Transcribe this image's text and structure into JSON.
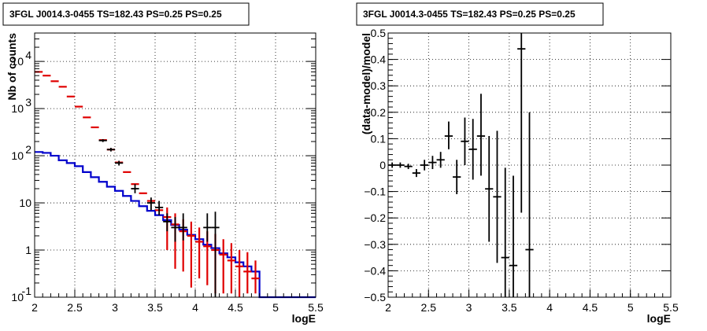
{
  "chart_data": [
    {
      "type": "line",
      "title": "3FGL J0014.3-0455 TS=182.43 PS=0.25 PS=0.25",
      "xlabel": "logE",
      "ylabel": "Nb of counts",
      "xlim": [
        2,
        5.5
      ],
      "ylim": [
        0.1,
        40000
      ],
      "yscale": "log",
      "grid": true,
      "x_ticks": [
        "2",
        "2.5",
        "3",
        "3.5",
        "4",
        "4.5",
        "5",
        "5.5"
      ],
      "y_ticks": [
        {
          "value": 0.1,
          "base": "10",
          "exp": "-1"
        },
        {
          "value": 1,
          "label": "1"
        },
        {
          "value": 10,
          "label": "10"
        },
        {
          "value": 100,
          "base": "10",
          "exp": "2"
        },
        {
          "value": 1000,
          "base": "10",
          "exp": "3"
        },
        {
          "value": 10000,
          "base": "10",
          "exp": "4"
        }
      ],
      "series": [
        {
          "kind": "data",
          "color": "#000000",
          "points": [
            {
              "x": 2.85,
              "y": 210,
              "lo": 195,
              "hi": 225
            },
            {
              "x": 2.95,
              "y": 135,
              "lo": 123,
              "hi": 147
            },
            {
              "x": 3.05,
              "y": 70,
              "lo": 62,
              "hi": 78
            },
            {
              "x": 3.25,
              "y": 20,
              "lo": 16,
              "hi": 25
            },
            {
              "x": 3.45,
              "y": 10,
              "lo": 7,
              "hi": 13
            },
            {
              "x": 3.55,
              "y": 8,
              "lo": 5.5,
              "hi": 11
            },
            {
              "x": 3.65,
              "y": 4,
              "lo": 2.5,
              "hi": 6
            },
            {
              "x": 3.75,
              "y": 3,
              "lo": 1.5,
              "hi": 5
            },
            {
              "x": 3.85,
              "y": 3,
              "lo": 1.6,
              "hi": 6
            },
            {
              "x": 4.15,
              "y": 3,
              "lo": 1.5,
              "hi": 6
            },
            {
              "x": 4.25,
              "y": 3.0,
              "lo": 0.1,
              "hi": 6.5
            }
          ]
        },
        {
          "kind": "model",
          "color": "#e00000",
          "points": [
            {
              "x": 2.05,
              "y": 6000
            },
            {
              "x": 2.15,
              "y": 5000
            },
            {
              "x": 2.25,
              "y": 3800
            },
            {
              "x": 2.35,
              "y": 2900
            },
            {
              "x": 2.45,
              "y": 1800
            },
            {
              "x": 2.55,
              "y": 1100
            },
            {
              "x": 2.65,
              "y": 650
            },
            {
              "x": 2.75,
              "y": 400
            },
            {
              "x": 2.85,
              "y": 215
            },
            {
              "x": 2.95,
              "y": 135
            },
            {
              "x": 3.05,
              "y": 72
            },
            {
              "x": 3.15,
              "y": 45
            },
            {
              "x": 3.25,
              "y": 25
            },
            {
              "x": 3.35,
              "y": 16
            },
            {
              "x": 3.45,
              "y": 11
            },
            {
              "x": 3.55,
              "y": 7
            },
            {
              "x": 3.65,
              "y": 5,
              "lo": 1.0,
              "hi": 8
            },
            {
              "x": 3.75,
              "y": 3.5,
              "lo": 0.4,
              "hi": 6
            },
            {
              "x": 3.85,
              "y": 2.5,
              "lo": 0.35,
              "hi": 4.5
            },
            {
              "x": 3.95,
              "y": 2,
              "lo": 0.16,
              "hi": 4
            },
            {
              "x": 4.05,
              "y": 1.5,
              "lo": 0.25,
              "hi": 3
            },
            {
              "x": 4.15,
              "y": 1.2,
              "lo": 0.18,
              "hi": 2.5
            },
            {
              "x": 4.25,
              "y": 1.0,
              "lo": 0.12,
              "hi": 2.2
            },
            {
              "x": 4.35,
              "y": 0.8,
              "lo": 0.12,
              "hi": 1.7
            },
            {
              "x": 4.45,
              "y": 0.6,
              "lo": 0.12,
              "hi": 1.4
            },
            {
              "x": 4.55,
              "y": 0.45,
              "lo": 0.1,
              "hi": 1.0
            },
            {
              "x": 4.65,
              "y": 0.35,
              "lo": 0.12,
              "hi": 0.9
            },
            {
              "x": 4.75,
              "y": 0.25,
              "lo": 0.12,
              "hi": 0.6
            }
          ]
        },
        {
          "kind": "histogram",
          "color": "#0000cc",
          "edges": [
            2.0,
            2.1,
            2.2,
            2.3,
            2.4,
            2.5,
            2.6,
            2.7,
            2.8,
            2.9,
            3.0,
            3.1,
            3.2,
            3.3,
            3.4,
            3.5,
            3.6,
            3.7,
            3.8,
            3.9,
            4.0,
            4.1,
            4.2,
            4.3,
            4.4,
            4.5,
            4.6,
            4.7,
            4.8,
            4.9,
            5.0,
            5.1,
            5.2,
            5.3,
            5.4,
            5.5
          ],
          "values": [
            120,
            115,
            100,
            80,
            70,
            60,
            45,
            35,
            28,
            22,
            18,
            14,
            11,
            8.5,
            6.8,
            5.5,
            4.3,
            3.4,
            2.7,
            2.1,
            1.7,
            1.3,
            1.1,
            0.85,
            0.7,
            0.55,
            0.45,
            0.35,
            0.1,
            0.1,
            0.1,
            0.1,
            0.1,
            0.1,
            0.1
          ]
        }
      ]
    },
    {
      "type": "scatter",
      "title": "3FGL J0014.3-0455 TS=182.43 PS=0.25 PS=0.25",
      "xlabel": "logE",
      "ylabel": "(data-model)/model",
      "xlim": [
        2,
        5.5
      ],
      "ylim": [
        -0.5,
        0.5
      ],
      "grid": true,
      "x_ticks": [
        "2",
        "2.5",
        "3",
        "3.5",
        "4",
        "4.5",
        "5",
        "5.5"
      ],
      "y_ticks": [
        {
          "value": -0.5,
          "label": "−0.5"
        },
        {
          "value": -0.4,
          "label": "−0.4"
        },
        {
          "value": -0.3,
          "label": "−0.3"
        },
        {
          "value": -0.2,
          "label": "−0.2"
        },
        {
          "value": -0.1,
          "label": "−0.1"
        },
        {
          "value": 0,
          "label": "0"
        },
        {
          "value": 0.1,
          "label": "0.1"
        },
        {
          "value": 0.2,
          "label": "0.2"
        },
        {
          "value": 0.3,
          "label": "0.3"
        },
        {
          "value": 0.4,
          "label": "0.4"
        },
        {
          "value": 0.5,
          "label": "0.5"
        }
      ],
      "points": [
        {
          "x": 2.05,
          "y": 0.0,
          "lo": -0.01,
          "hi": 0.01
        },
        {
          "x": 2.15,
          "y": 0.0,
          "lo": -0.01,
          "hi": 0.01
        },
        {
          "x": 2.25,
          "y": -0.005,
          "lo": -0.015,
          "hi": 0.005
        },
        {
          "x": 2.35,
          "y": -0.03,
          "lo": -0.045,
          "hi": -0.015
        },
        {
          "x": 2.45,
          "y": 0.0,
          "lo": -0.02,
          "hi": 0.02
        },
        {
          "x": 2.55,
          "y": 0.01,
          "lo": -0.015,
          "hi": 0.035
        },
        {
          "x": 2.65,
          "y": 0.02,
          "lo": -0.01,
          "hi": 0.05
        },
        {
          "x": 2.75,
          "y": 0.11,
          "lo": 0.06,
          "hi": 0.165
        },
        {
          "x": 2.85,
          "y": -0.045,
          "lo": -0.11,
          "hi": 0.02
        },
        {
          "x": 2.95,
          "y": 0.09,
          "lo": 0.0,
          "hi": 0.18
        },
        {
          "x": 3.05,
          "y": 0.06,
          "lo": -0.055,
          "hi": 0.175
        },
        {
          "x": 3.15,
          "y": 0.11,
          "lo": -0.04,
          "hi": 0.27
        },
        {
          "x": 3.25,
          "y": -0.09,
          "lo": -0.29,
          "hi": 0.11
        },
        {
          "x": 3.35,
          "y": -0.12,
          "lo": -0.37,
          "hi": 0.13
        },
        {
          "x": 3.45,
          "y": -0.35,
          "lo": -0.5,
          "hi": -0.01
        },
        {
          "x": 3.55,
          "y": -0.38,
          "lo": -0.5,
          "hi": -0.04
        },
        {
          "x": 3.65,
          "y": 0.44,
          "lo": -0.18,
          "hi": 0.5
        },
        {
          "x": 3.75,
          "y": -0.32,
          "lo": -0.5,
          "hi": 0.2
        }
      ]
    }
  ]
}
